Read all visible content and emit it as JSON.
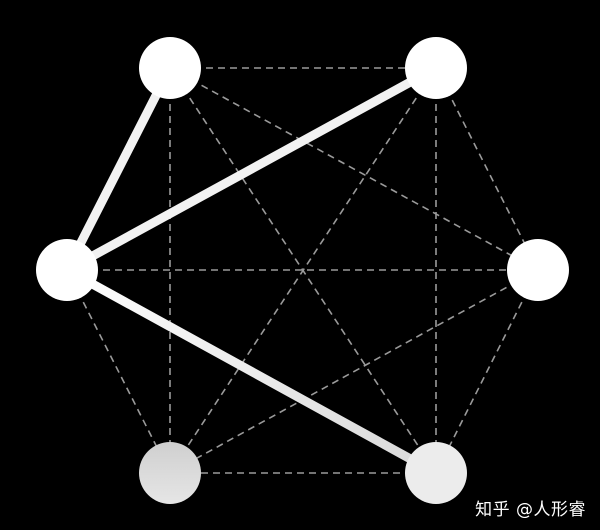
{
  "graph": {
    "nodes": [
      {
        "id": "A",
        "fill": "#ffffff"
      },
      {
        "id": "B",
        "fill": "#ffffff"
      },
      {
        "id": "C",
        "fill": "#ffffff"
      },
      {
        "id": "D",
        "fill": "#ffffff"
      },
      {
        "id": "E",
        "fill": "#ffffff"
      },
      {
        "id": "F",
        "fill": "#d4d4d4"
      }
    ],
    "edges": [
      {
        "from": "A",
        "to": "B",
        "style": "dashed"
      },
      {
        "from": "A",
        "to": "C",
        "style": "solid"
      },
      {
        "from": "A",
        "to": "D",
        "style": "dashed"
      },
      {
        "from": "A",
        "to": "E",
        "style": "dashed"
      },
      {
        "from": "A",
        "to": "F",
        "style": "dashed"
      },
      {
        "from": "B",
        "to": "C",
        "style": "solid"
      },
      {
        "from": "B",
        "to": "D",
        "style": "dashed"
      },
      {
        "from": "B",
        "to": "E",
        "style": "dashed"
      },
      {
        "from": "B",
        "to": "F",
        "style": "dashed"
      },
      {
        "from": "C",
        "to": "D",
        "style": "dashed"
      },
      {
        "from": "C",
        "to": "E",
        "style": "solid"
      },
      {
        "from": "C",
        "to": "F",
        "style": "dashed"
      },
      {
        "from": "D",
        "to": "E",
        "style": "dashed"
      },
      {
        "from": "D",
        "to": "F",
        "style": "dashed"
      },
      {
        "from": "E",
        "to": "F",
        "style": "dashed"
      }
    ],
    "colors": {
      "solid_edge": "#f2f2f2",
      "dashed_edge": "#9a9a9a",
      "background": "#000000"
    }
  },
  "watermark": {
    "text": "知乎 @人形睿"
  }
}
